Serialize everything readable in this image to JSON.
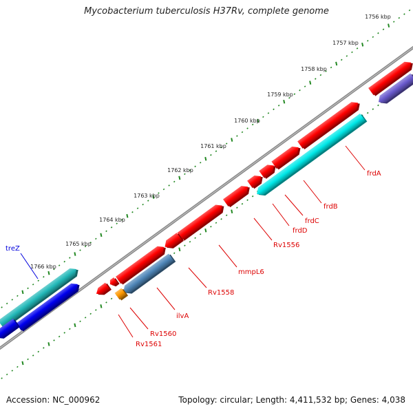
{
  "title": "Mycobacterium tuberculosis H37Rv, complete genome",
  "footer": {
    "accession": "Accession: NC_000962",
    "summary": "Topology: circular; Length: 4,411,532 bp; Genes: 4,038"
  },
  "ruler": [
    "1756 kbp",
    "1757 kbp",
    "1758 kbp",
    "1759 kbp",
    "1760 kbp",
    "1761 kbp",
    "1762 kbp",
    "1763 kbp",
    "1764 kbp",
    "1765 kbp",
    "1766 kbp"
  ],
  "genes": [
    "frdA",
    "frdB",
    "frdC",
    "frdD",
    "Rv1556",
    "mmpL6",
    "Rv1558",
    "ilvA",
    "Rv1560",
    "Rv1561",
    "treZ"
  ],
  "colors": {
    "backbone": "#8a8a8a",
    "tick": "#228822",
    "cds_red": "#ff0000",
    "cds_blue": "#0000ee",
    "cds_cyan": "#00e8e8",
    "cds_teal": "#22b8b8",
    "cds_steel": "#4f86b8",
    "cds_purple": "#6a5acd",
    "cds_orange": "#ff9900",
    "label_red": "#dd0000",
    "label_blue": "#0000dd"
  }
}
